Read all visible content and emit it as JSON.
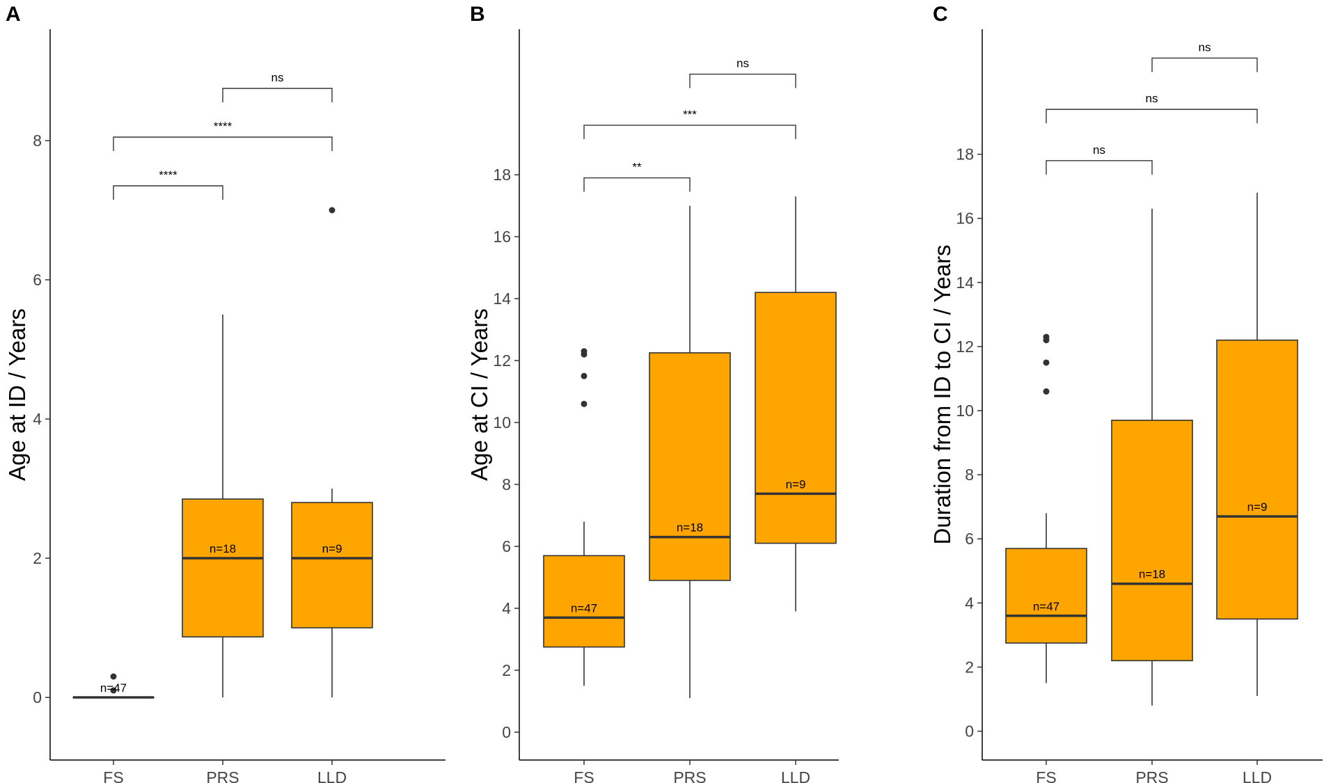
{
  "chart_data": [
    {
      "type": "boxplot",
      "panel": "A",
      "ylabel": "Age at ID / Years",
      "xlabel": "",
      "categories": [
        "FS",
        "PRS",
        "LLD"
      ],
      "ylim": [
        -0.9,
        9.6
      ],
      "yticks": [
        0,
        2,
        4,
        6,
        8
      ],
      "box_color": "#FFA500",
      "boxes": [
        {
          "category": "FS",
          "min": 0,
          "q1": 0,
          "median": 0,
          "q3": 0,
          "max": 0,
          "outliers": [
            0.3,
            0.1
          ],
          "n_label": "n=47"
        },
        {
          "category": "PRS",
          "min": 0,
          "q1": 0.87,
          "median": 2.0,
          "q3": 2.85,
          "max": 5.5,
          "outliers": [],
          "n_label": "n=18"
        },
        {
          "category": "LLD",
          "min": 0,
          "q1": 1.0,
          "median": 2.0,
          "q3": 2.8,
          "max": 3.0,
          "outliers": [
            7.0
          ],
          "n_label": "n=9"
        }
      ],
      "comparisons": [
        {
          "from": "FS",
          "to": "PRS",
          "y": 7.35,
          "label": "****"
        },
        {
          "from": "FS",
          "to": "LLD",
          "y": 8.05,
          "label": "****"
        },
        {
          "from": "PRS",
          "to": "LLD",
          "y": 8.75,
          "label": "ns"
        }
      ]
    },
    {
      "type": "boxplot",
      "panel": "B",
      "ylabel": "Age at CI / Years",
      "xlabel": "",
      "categories": [
        "FS",
        "PRS",
        "LLD"
      ],
      "ylim": [
        -0.9,
        22.7
      ],
      "yticks": [
        0,
        2,
        4,
        6,
        8,
        10,
        12,
        14,
        16,
        18
      ],
      "box_color": "#FFA500",
      "boxes": [
        {
          "category": "FS",
          "min": 1.5,
          "q1": 2.75,
          "median": 3.7,
          "q3": 5.7,
          "max": 6.8,
          "outliers": [
            12.3,
            12.2,
            11.5,
            10.6
          ],
          "n_label": "n=47"
        },
        {
          "category": "PRS",
          "min": 1.1,
          "q1": 4.9,
          "median": 6.3,
          "q3": 12.25,
          "max": 17.0,
          "outliers": [],
          "n_label": "n=18"
        },
        {
          "category": "LLD",
          "min": 3.9,
          "q1": 6.1,
          "median": 7.7,
          "q3": 14.2,
          "max": 17.3,
          "outliers": [],
          "n_label": "n=9"
        }
      ],
      "comparisons": [
        {
          "from": "FS",
          "to": "PRS",
          "y": 17.9,
          "label": "**"
        },
        {
          "from": "FS",
          "to": "LLD",
          "y": 19.6,
          "label": "***"
        },
        {
          "from": "PRS",
          "to": "LLD",
          "y": 21.25,
          "label": "ns"
        }
      ]
    },
    {
      "type": "boxplot",
      "panel": "C",
      "ylabel": "Duration from ID to CI / Years",
      "xlabel": "",
      "categories": [
        "FS",
        "PRS",
        "LLD"
      ],
      "ylim": [
        -0.9,
        21.9
      ],
      "yticks": [
        0,
        2,
        4,
        6,
        8,
        10,
        12,
        14,
        16,
        18
      ],
      "box_color": "#FFA500",
      "boxes": [
        {
          "category": "FS",
          "min": 1.5,
          "q1": 2.75,
          "median": 3.6,
          "q3": 5.7,
          "max": 6.8,
          "outliers": [
            12.3,
            12.2,
            11.5,
            10.6
          ],
          "n_label": "n=47"
        },
        {
          "category": "PRS",
          "min": 0.8,
          "q1": 2.2,
          "median": 4.6,
          "q3": 9.7,
          "max": 16.3,
          "outliers": [],
          "n_label": "n=18"
        },
        {
          "category": "LLD",
          "min": 1.1,
          "q1": 3.5,
          "median": 6.7,
          "q3": 12.2,
          "max": 16.8,
          "outliers": [],
          "n_label": "n=9"
        }
      ],
      "comparisons": [
        {
          "from": "FS",
          "to": "PRS",
          "y": 17.8,
          "label": "ns"
        },
        {
          "from": "FS",
          "to": "LLD",
          "y": 19.4,
          "label": "ns"
        },
        {
          "from": "PRS",
          "to": "LLD",
          "y": 21.0,
          "label": "ns"
        }
      ]
    }
  ]
}
